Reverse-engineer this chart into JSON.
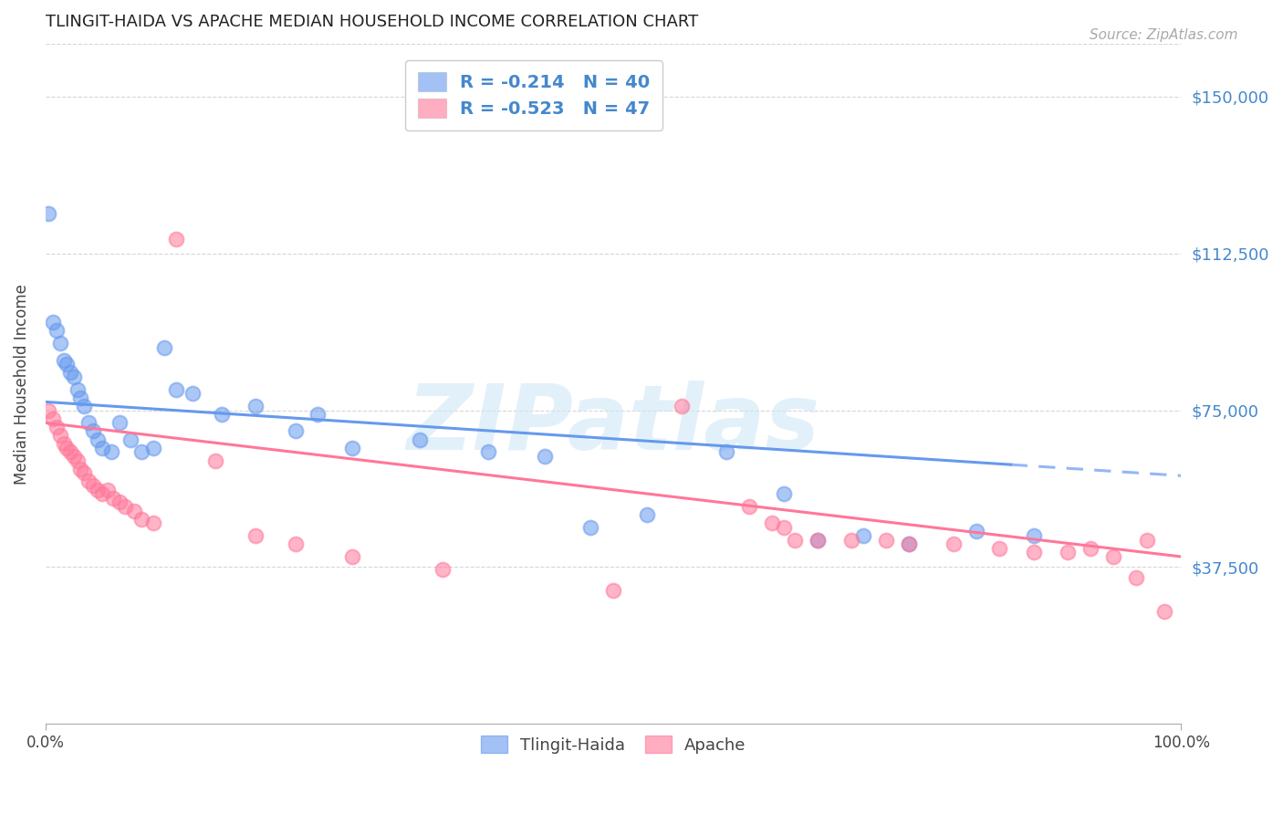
{
  "title": "TLINGIT-HAIDA VS APACHE MEDIAN HOUSEHOLD INCOME CORRELATION CHART",
  "source": "Source: ZipAtlas.com",
  "ylabel": "Median Household Income",
  "xlim": [
    0,
    1.0
  ],
  "ylim": [
    0,
    162500
  ],
  "ytick_values": [
    37500,
    75000,
    112500,
    150000
  ],
  "ytick_labels": [
    "$37,500",
    "$75,000",
    "$112,500",
    "$150,000"
  ],
  "tlingit_color": "#6699EE",
  "apache_color": "#FF7799",
  "watermark": "ZIPatlas",
  "legend_label_1": "R = -0.214   N = 40",
  "legend_label_2": "R = -0.523   N = 47",
  "background_color": "#ffffff",
  "grid_color": "#cccccc",
  "axis_label_color": "#4488CC",
  "tlingit_R": -0.214,
  "tlingit_N": 40,
  "apache_R": -0.523,
  "apache_N": 47,
  "tlingit_x": [
    0.003,
    0.007,
    0.01,
    0.013,
    0.016,
    0.019,
    0.022,
    0.025,
    0.028,
    0.031,
    0.034,
    0.038,
    0.042,
    0.046,
    0.05,
    0.058,
    0.065,
    0.075,
    0.085,
    0.095,
    0.105,
    0.115,
    0.13,
    0.155,
    0.185,
    0.22,
    0.27,
    0.33,
    0.39,
    0.44,
    0.48,
    0.53,
    0.6,
    0.65,
    0.68,
    0.72,
    0.76,
    0.82,
    0.87,
    0.24
  ],
  "tlingit_y": [
    122000,
    96000,
    94000,
    91000,
    87000,
    86000,
    84000,
    83000,
    80000,
    78000,
    76000,
    72000,
    70000,
    68000,
    66000,
    65000,
    72000,
    68000,
    65000,
    66000,
    90000,
    80000,
    79000,
    74000,
    76000,
    70000,
    66000,
    68000,
    65000,
    64000,
    47000,
    50000,
    65000,
    55000,
    44000,
    45000,
    43000,
    46000,
    45000,
    74000
  ],
  "apache_x": [
    0.003,
    0.007,
    0.01,
    0.013,
    0.016,
    0.019,
    0.022,
    0.025,
    0.028,
    0.031,
    0.034,
    0.038,
    0.042,
    0.046,
    0.05,
    0.055,
    0.06,
    0.065,
    0.07,
    0.078,
    0.085,
    0.095,
    0.115,
    0.15,
    0.185,
    0.22,
    0.27,
    0.35,
    0.5,
    0.56,
    0.62,
    0.64,
    0.66,
    0.68,
    0.71,
    0.74,
    0.76,
    0.8,
    0.84,
    0.87,
    0.9,
    0.92,
    0.94,
    0.96,
    0.97,
    0.985,
    0.65
  ],
  "apache_y": [
    75000,
    73000,
    71000,
    69000,
    67000,
    66000,
    65000,
    64000,
    63000,
    61000,
    60000,
    58000,
    57000,
    56000,
    55000,
    56000,
    54000,
    53000,
    52000,
    51000,
    49000,
    48000,
    116000,
    63000,
    45000,
    43000,
    40000,
    37000,
    32000,
    76000,
    52000,
    48000,
    44000,
    44000,
    44000,
    44000,
    43000,
    43000,
    42000,
    41000,
    41000,
    42000,
    40000,
    35000,
    44000,
    27000,
    47000
  ],
  "trendline_blue_x0": 0.0,
  "trendline_blue_y0": 77000,
  "trendline_blue_x1": 0.85,
  "trendline_blue_y1": 62000,
  "trendline_blue_dash_x0": 0.85,
  "trendline_blue_dash_x1": 1.0,
  "trendline_pink_x0": 0.0,
  "trendline_pink_y0": 72000,
  "trendline_pink_x1": 1.0,
  "trendline_pink_y1": 40000
}
